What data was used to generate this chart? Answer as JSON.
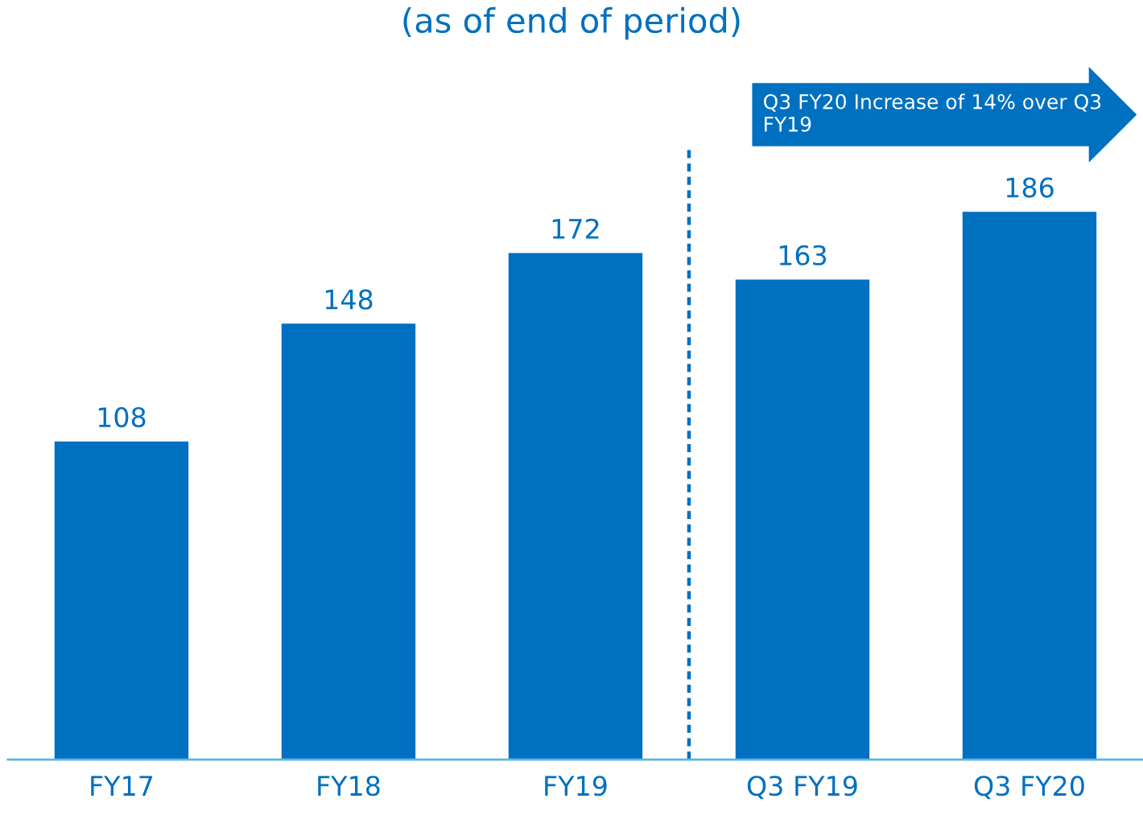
{
  "chart_data": {
    "type": "bar",
    "subtitle": "(as of end of period)",
    "categories": [
      "FY17",
      "FY18",
      "FY19",
      "Q3 FY19",
      "Q3 FY20"
    ],
    "values": [
      108,
      148,
      172,
      163,
      186
    ],
    "color": "#0070c0",
    "data_labels": true,
    "annotations": [
      "Q3 FY20 Increase of 14% over Q3 FY19"
    ],
    "grid": false,
    "legend": false
  }
}
